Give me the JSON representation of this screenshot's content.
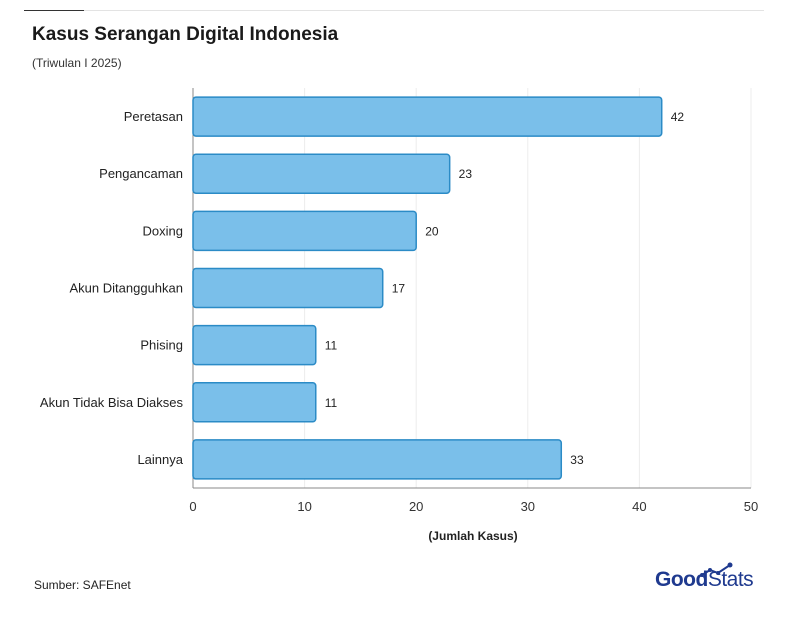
{
  "title": "Kasus Serangan Digital Indonesia",
  "subtitle": "(Triwulan I 2025)",
  "source": "Sumber: SAFEnet",
  "logo": {
    "good": "Good",
    "stats": "Stats"
  },
  "colors": {
    "bar_fill": "#7abfea",
    "bar_stroke": "#2b8bc6",
    "grid": "#ececec",
    "axis": "#888888"
  },
  "chart_data": {
    "type": "bar",
    "orientation": "horizontal",
    "categories": [
      "Peretasan",
      "Pengancaman",
      "Doxing",
      "Akun Ditangguhkan",
      "Phising",
      "Akun Tidak Bisa Diakses",
      "Lainnya"
    ],
    "values": [
      42,
      23,
      20,
      17,
      11,
      11,
      33
    ],
    "data_labels": [
      "42",
      "23",
      "20",
      "17",
      "11",
      "11",
      "33"
    ],
    "xlabel": "(Jumlah Kasus)",
    "xlim": [
      0,
      50
    ],
    "xticks": [
      0,
      10,
      20,
      30,
      40,
      50
    ],
    "grid": true
  }
}
